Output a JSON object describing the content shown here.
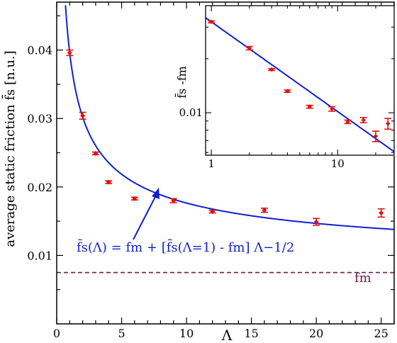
{
  "colors": {
    "axis": "#000000",
    "fit": "#1020d0",
    "points": "#e01010",
    "fm_line": "#6a1c5a",
    "annotation": "#1020d0"
  },
  "chart_data": [
    {
      "type": "scatter",
      "xlabel": "Λ",
      "ylabel": "average static friction f̄s [n.u.]",
      "xlim": [
        0,
        26
      ],
      "ylim": [
        0,
        0.047
      ],
      "x_ticks": [
        0,
        5,
        10,
        15,
        20,
        25
      ],
      "y_ticks": [
        0.01,
        0.02,
        0.03,
        0.04
      ],
      "y_tick_labels": [
        "0.01",
        "0.02",
        "0.03",
        "0.04"
      ],
      "series": [
        {
          "x": [
            1,
            2,
            3,
            4,
            6,
            9,
            12,
            16,
            20,
            25
          ],
          "y": [
            0.0396,
            0.0304,
            0.0249,
            0.0207,
            0.0183,
            0.018,
            0.0164,
            0.0166,
            0.0149,
            0.0162
          ],
          "err": [
            0.0004,
            0.0005,
            0.0002,
            0.0002,
            0.0002,
            0.0003,
            0.0002,
            0.0003,
            0.0005,
            0.0006
          ]
        }
      ],
      "fit_curve": {
        "fm": 0.0075,
        "f1": 0.0396,
        "exponent": -0.5
      },
      "fm_line": {
        "y": 0.0075
      },
      "annotation": "f̄s(Λ)  =  fm + [f̄s(Λ=1) - fm] Λ−1/2",
      "fm_label": "fm"
    },
    {
      "type": "scatter",
      "scale": "log-log",
      "xlabel": "",
      "ylabel": "f̄s -fm",
      "xlim": [
        0.9,
        28
      ],
      "ylim": [
        0.0058,
        0.0395
      ],
      "x_ticks": [
        1,
        10
      ],
      "x_tick_labels": [
        "1",
        "10"
      ],
      "y_ticks": [
        0.01
      ],
      "y_tick_labels": [
        "0.01"
      ],
      "series": [
        {
          "x": [
            1,
            2,
            3,
            4,
            6,
            9,
            12,
            16,
            20,
            25
          ],
          "y": [
            0.0321,
            0.0229,
            0.0174,
            0.0132,
            0.0108,
            0.0105,
            0.0089,
            0.0091,
            0.0074,
            0.0087
          ],
          "err": [
            0.0004,
            0.0005,
            0.0002,
            0.0002,
            0.0002,
            0.0003,
            0.0002,
            0.0003,
            0.0005,
            0.0006
          ]
        }
      ],
      "fit_line": {
        "a": 0.0321,
        "exponent": -0.5
      }
    }
  ]
}
